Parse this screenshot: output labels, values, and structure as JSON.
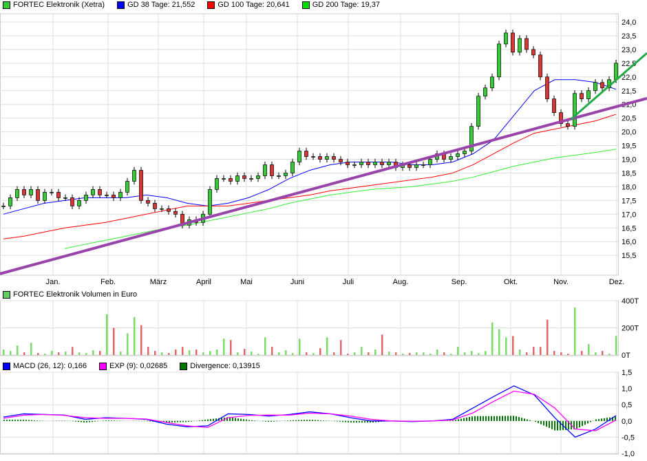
{
  "legend_price": [
    {
      "label": "FORTEC Elektronik (Xetra)",
      "color": "#33cc33"
    },
    {
      "label": "GD 38 Tage: 21,552",
      "color": "#0000ff"
    },
    {
      "label": "GD 100 Tage: 20,641",
      "color": "#ff0000"
    },
    {
      "label": "GD 200 Tage: 19,37",
      "color": "#00dd00"
    }
  ],
  "legend_volume": [
    {
      "label": "FORTEC Elektronik Volumen in Euro",
      "color": "#66cc66"
    }
  ],
  "legend_macd": [
    {
      "label": "MACD (26, 12): 0,166",
      "color": "#0000ff"
    },
    {
      "label": "EXP (9): 0,02685",
      "color": "#ff00ff"
    },
    {
      "label": "Divergence: 0,13915",
      "color": "#007700"
    }
  ],
  "chart_data": [
    {
      "type": "candlestick",
      "months": [
        "Jan.",
        "Feb.",
        "März",
        "April",
        "Mai",
        "Juni",
        "Juli",
        "Aug.",
        "Sep.",
        "Okt.",
        "Nov.",
        "Dez."
      ],
      "y_ticks": [
        "15,5",
        "16,0",
        "16,5",
        "17,0",
        "17,5",
        "18,0",
        "18,5",
        "19,0",
        "19,5",
        "20,0",
        "20,5",
        "21,0",
        "21,5",
        "22,0",
        "22,5",
        "23,0",
        "23,5",
        "24,0"
      ],
      "ylim": [
        14.9,
        24.3
      ],
      "grid": true,
      "close": [
        17.3,
        17.6,
        17.9,
        17.7,
        17.9,
        17.5,
        17.8,
        17.8,
        17.6,
        17.6,
        17.3,
        17.5,
        17.7,
        17.9,
        17.7,
        17.7,
        17.6,
        17.8,
        18.2,
        18.6,
        17.5,
        17.4,
        17.2,
        17.2,
        17.1,
        17.0,
        16.6,
        16.8,
        16.7,
        17.0,
        17.9,
        18.3,
        18.3,
        18.2,
        18.4,
        18.3,
        18.3,
        18.4,
        18.8,
        18.4,
        18.4,
        18.5,
        18.9,
        19.3,
        19.1,
        19.1,
        19.0,
        19.1,
        19.0,
        18.9,
        18.8,
        18.8,
        18.9,
        18.8,
        18.9,
        18.8,
        18.9,
        18.7,
        18.8,
        18.7,
        18.8,
        18.8,
        19.0,
        19.2,
        19.0,
        19.1,
        19.2,
        19.3,
        20.2,
        21.3,
        21.6,
        22.0,
        23.2,
        23.6,
        22.9,
        23.4,
        23.0,
        22.8,
        22.0,
        21.2,
        20.7,
        20.3,
        20.2,
        21.4,
        21.2,
        21.5,
        21.8,
        21.6,
        21.9,
        22.5
      ],
      "series": [
        {
          "name": "GD 38 Tage",
          "color": "#0000ff",
          "values": [
            17.0,
            17.2,
            17.4,
            17.5,
            17.6,
            17.6,
            17.6,
            17.7,
            17.6,
            17.4,
            17.3,
            17.4,
            17.6,
            17.9,
            18.3,
            18.6,
            18.8,
            18.9,
            18.9,
            18.9,
            18.8,
            18.8,
            18.9,
            19.2,
            19.7,
            20.6,
            21.5,
            21.9,
            21.9,
            21.8,
            21.55
          ]
        },
        {
          "name": "GD 100 Tage",
          "color": "#ff0000",
          "values": [
            16.1,
            16.2,
            16.35,
            16.5,
            16.6,
            16.7,
            16.85,
            17.0,
            17.15,
            17.3,
            17.3,
            17.3,
            17.4,
            17.5,
            17.6,
            17.7,
            17.85,
            17.95,
            18.05,
            18.15,
            18.25,
            18.35,
            18.5,
            18.8,
            19.2,
            19.6,
            19.95,
            20.1,
            20.25,
            20.4,
            20.64
          ]
        },
        {
          "name": "GD 200 Tage",
          "color": "#33ee33",
          "values": [
            null,
            null,
            null,
            15.75,
            15.9,
            16.05,
            16.2,
            16.35,
            16.5,
            16.6,
            16.75,
            16.9,
            17.05,
            17.2,
            17.4,
            17.55,
            17.7,
            17.8,
            17.9,
            17.95,
            18.0,
            18.1,
            18.2,
            18.35,
            18.55,
            18.75,
            18.9,
            19.05,
            19.15,
            19.25,
            19.37
          ]
        }
      ],
      "trendlines": [
        {
          "color": "#9944aa",
          "from": 14.83,
          "to": 21.22
        },
        {
          "color": "#22aa44",
          "from": 20.47,
          "to": 22.87
        }
      ]
    },
    {
      "type": "bar",
      "y_ticks": [
        "0T",
        "200T",
        "400T"
      ],
      "ylim": [
        0,
        400
      ],
      "values": [
        40,
        30,
        70,
        20,
        90,
        15,
        10,
        30,
        20,
        25,
        60,
        20,
        15,
        35,
        30,
        300,
        200,
        25,
        160,
        280,
        220,
        60,
        30,
        20,
        15,
        40,
        60,
        35,
        40,
        20,
        30,
        40,
        120,
        110,
        20,
        45,
        25,
        10,
        130,
        60,
        20,
        35,
        15,
        120,
        20,
        15,
        50,
        130,
        20,
        110,
        10,
        20,
        60,
        20,
        40,
        150,
        25,
        20,
        10,
        15,
        20,
        20,
        10,
        40,
        20,
        10,
        60,
        20,
        30,
        15,
        30,
        240,
        190,
        130,
        140,
        40,
        20,
        60,
        60,
        260,
        30,
        20,
        10,
        350,
        30,
        80,
        20,
        30,
        10,
        140
      ]
    },
    {
      "type": "line",
      "y_ticks": [
        "-1,0",
        "-0,5",
        "0,0",
        "0,5",
        "1,0",
        "1,5"
      ],
      "ylim": [
        -1,
        1.5
      ],
      "series": [
        {
          "name": "MACD (26, 12)",
          "color": "#0000ff",
          "values": [
            0.12,
            0.22,
            0.2,
            0.18,
            0.05,
            0.1,
            0.08,
            0.05,
            -0.1,
            -0.18,
            -0.15,
            0.22,
            0.2,
            0.15,
            0.2,
            0.28,
            0.22,
            0.1,
            0.0,
            0.0,
            -0.02,
            0.0,
            0.05,
            0.4,
            0.75,
            1.08,
            0.8,
            0.1,
            -0.5,
            -0.25,
            0.166
          ]
        },
        {
          "name": "EXP (9)",
          "color": "#ff00ff",
          "values": [
            0.08,
            0.18,
            0.2,
            0.17,
            0.1,
            0.08,
            0.08,
            0.06,
            -0.05,
            -0.15,
            -0.2,
            0.1,
            0.17,
            0.18,
            0.18,
            0.24,
            0.22,
            0.15,
            0.05,
            0.0,
            -0.01,
            0.0,
            0.03,
            0.25,
            0.6,
            0.92,
            0.82,
            0.4,
            -0.25,
            -0.3,
            0.027
          ]
        }
      ],
      "histogram": {
        "name": "Divergence",
        "color": "#007700"
      }
    }
  ]
}
